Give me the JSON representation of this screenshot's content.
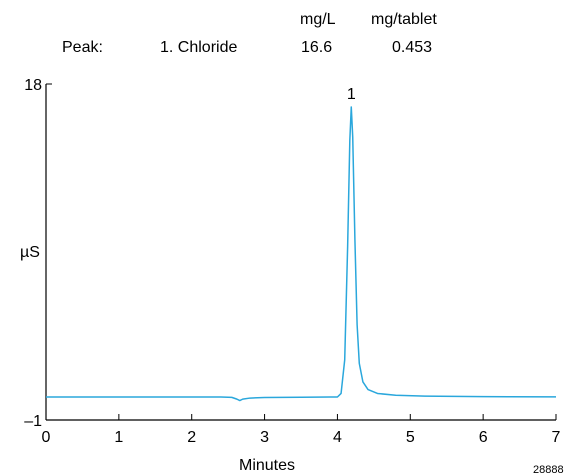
{
  "peak_table": {
    "peak_label": "Peak:",
    "unit_headers": [
      "mg/L",
      "mg/tablet"
    ],
    "rows": [
      {
        "name": "1. Chloride",
        "mg_per_l": "16.6",
        "mg_per_tablet": "0.453"
      }
    ]
  },
  "chart_data": {
    "type": "line",
    "title": "",
    "xlabel": "Minutes",
    "ylabel": "µS",
    "xlim": [
      0,
      7
    ],
    "ylim": [
      -1,
      18
    ],
    "x_ticks": [
      "0",
      "1",
      "2",
      "3",
      "4",
      "5",
      "6",
      "7"
    ],
    "y_ticks": [
      "18",
      "–1"
    ],
    "grid": false,
    "line_color": "#2aa7dc",
    "series": [
      {
        "x": [
          0,
          0.5,
          1,
          1.5,
          2,
          2.4,
          2.55,
          2.62,
          2.66,
          2.7,
          2.8,
          3,
          3.5,
          3.9,
          4.0,
          4.05,
          4.1,
          4.14,
          4.17,
          4.19,
          4.21,
          4.24,
          4.27,
          4.3,
          4.35,
          4.42,
          4.55,
          4.8,
          5.2,
          6,
          7
        ],
        "y": [
          0.3,
          0.3,
          0.3,
          0.3,
          0.3,
          0.3,
          0.28,
          0.18,
          0.1,
          0.18,
          0.24,
          0.27,
          0.29,
          0.3,
          0.3,
          0.5,
          2.4,
          8.8,
          14.8,
          16.7,
          15.0,
          9.2,
          4.4,
          2.2,
          1.15,
          0.72,
          0.5,
          0.4,
          0.35,
          0.32,
          0.31
        ]
      }
    ],
    "annotations": [
      {
        "text": "1",
        "x": 4.19,
        "y": 16.7
      }
    ],
    "corner_id": "28888"
  }
}
